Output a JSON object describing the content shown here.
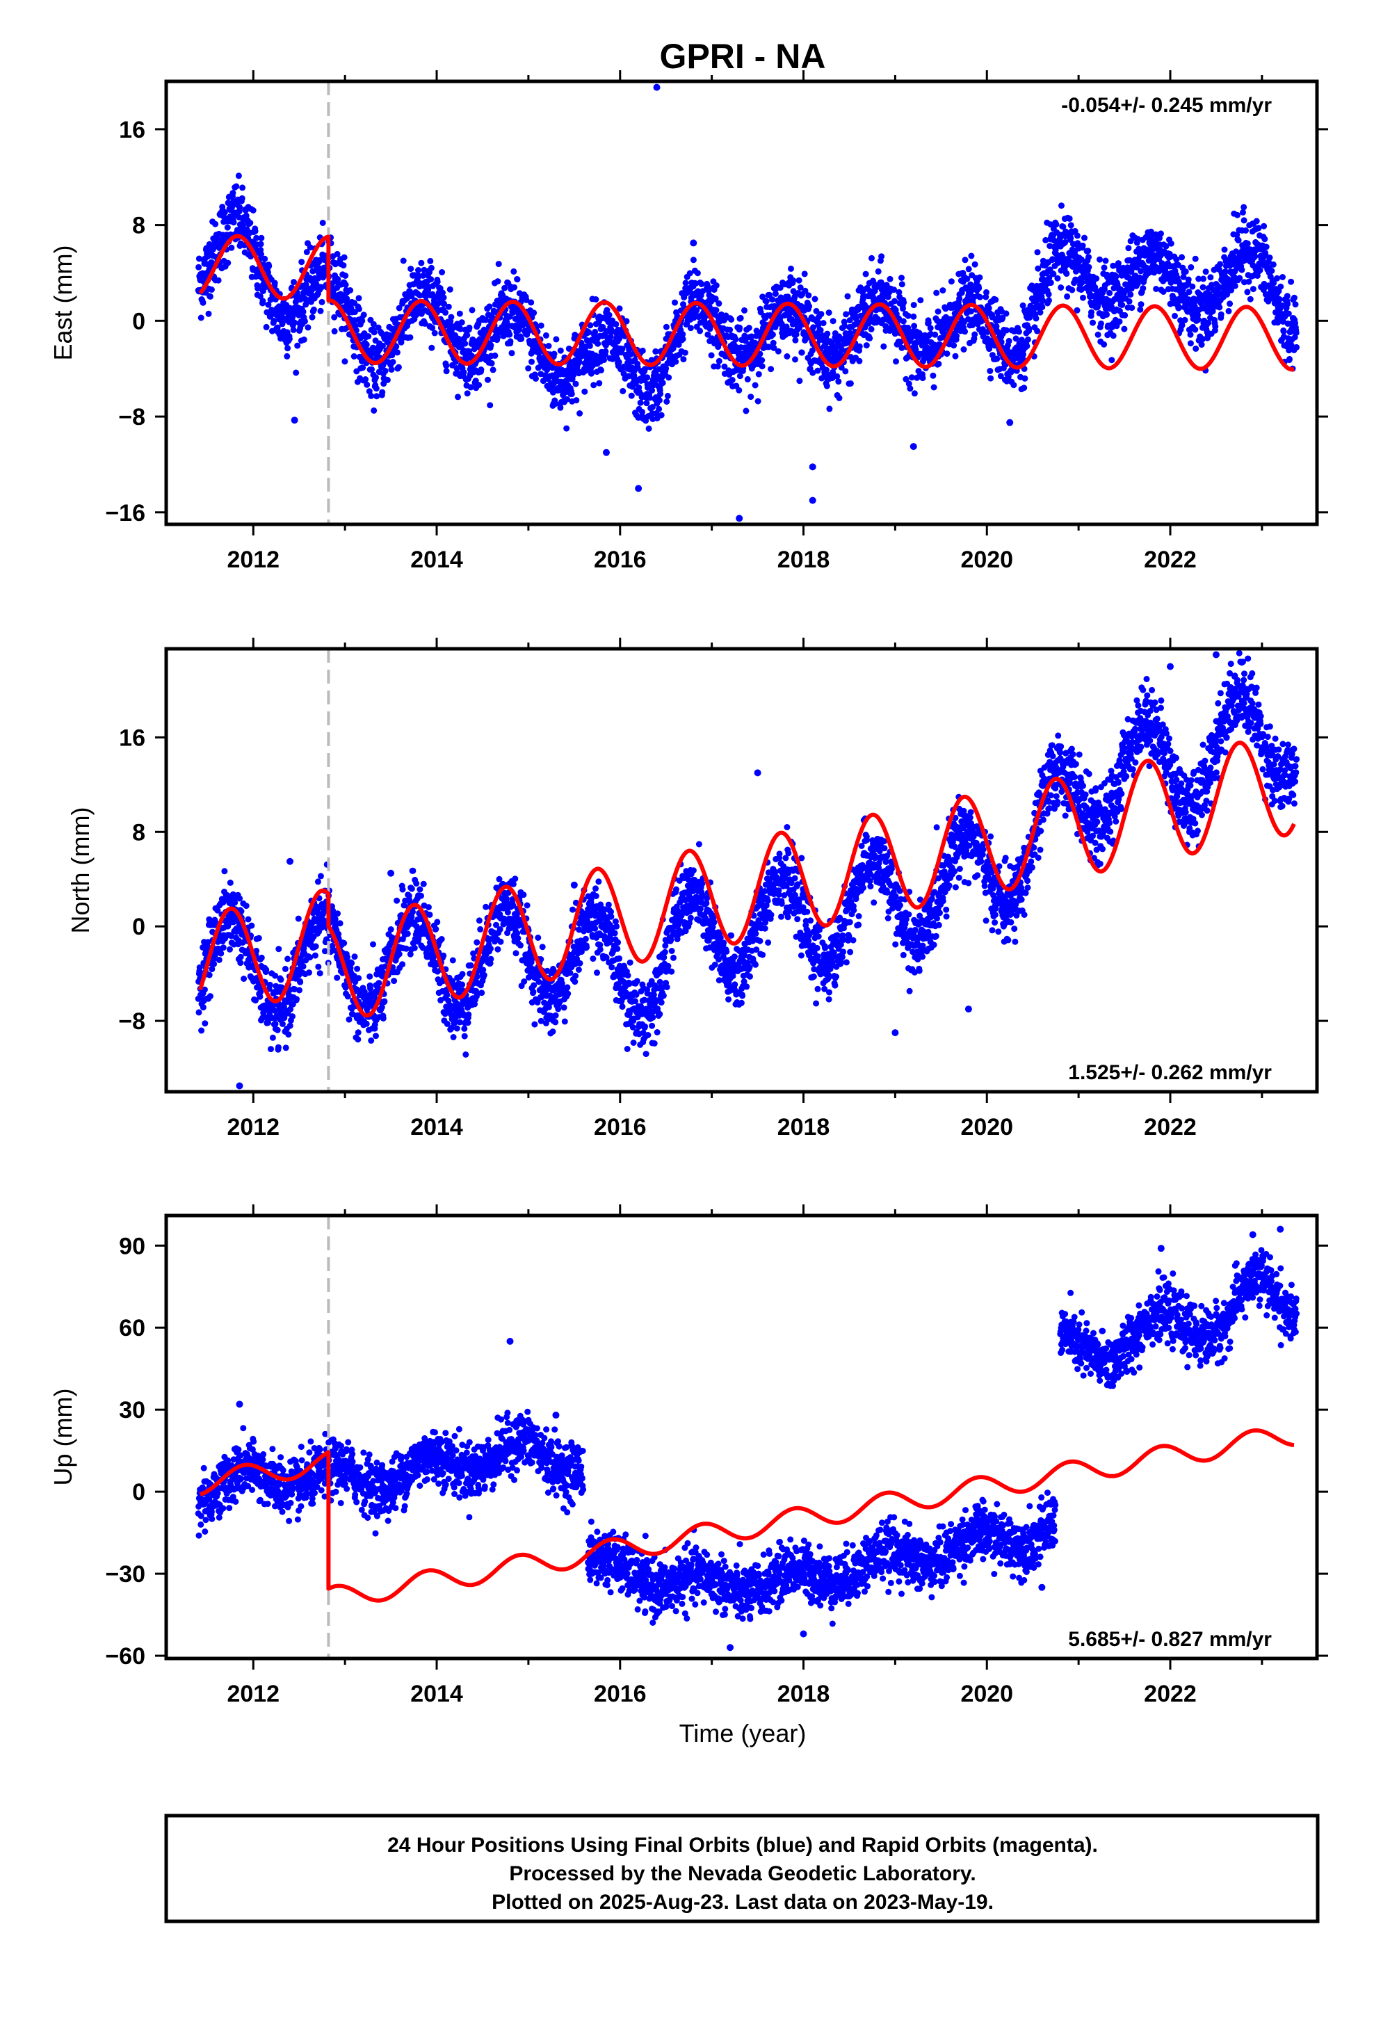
{
  "title": "GPRI - NA",
  "colors": {
    "data": "#0000ff",
    "model": "#ff0000",
    "event_line": "#bbbbbb",
    "frame": "#000000"
  },
  "xlabel": "Time (year)",
  "footer": {
    "line1": "24 Hour Positions Using Final Orbits (blue) and Rapid Orbits (magenta).",
    "line2": "Processed by the Nevada Geodetic Laboratory.",
    "line3": "Plotted on 2025-Aug-23. Last data on 2023-May-19."
  },
  "chart_data": [
    {
      "type": "scatter",
      "component": "East",
      "ylabel": "East (mm)",
      "rate_text": "-0.054+/- 0.245 mm/yr",
      "rate_position": "top-right",
      "xlim": [
        2011.05,
        2023.6
      ],
      "ylim": [
        -17,
        20
      ],
      "xticks": [
        2012,
        2014,
        2016,
        2018,
        2020,
        2022
      ],
      "yticks": [
        -16,
        -8,
        0,
        8,
        16
      ],
      "ytick_labels": [
        "−16",
        "−8",
        "0",
        "8",
        "16"
      ],
      "event_line_x": 2012.82,
      "data_series": {
        "name": "Final Orbits",
        "x_range": [
          2011.4,
          2023.38
        ],
        "trend_knots": [
          [
            2011.4,
            5.0
          ],
          [
            2011.8,
            6.5
          ],
          [
            2012.3,
            2.5
          ],
          [
            2012.8,
            2.0
          ],
          [
            2013.3,
            -1.5
          ],
          [
            2014.0,
            0.2
          ],
          [
            2014.8,
            -1.5
          ],
          [
            2015.5,
            -3.0
          ],
          [
            2016.3,
            -4.0
          ],
          [
            2016.8,
            -0.5
          ],
          [
            2017.5,
            -1.0
          ],
          [
            2018.5,
            -0.8
          ],
          [
            2019.5,
            -0.5
          ],
          [
            2020.3,
            -1.0
          ],
          [
            2020.7,
            3.5
          ],
          [
            2021.0,
            3.5
          ],
          [
            2021.5,
            4.0
          ],
          [
            2022.0,
            3.0
          ],
          [
            2022.5,
            3.0
          ],
          [
            2023.0,
            4.0
          ],
          [
            2023.38,
            1.0
          ]
        ],
        "seasonal_amplitude": 2.2,
        "scatter": 1.5,
        "outliers": [
          [
            2016.4,
            19.5
          ],
          [
            2016.8,
            6.5
          ],
          [
            2012.45,
            -8.3
          ],
          [
            2016.2,
            -14.0
          ],
          [
            2017.3,
            -16.5
          ],
          [
            2018.1,
            -12.2
          ],
          [
            2018.1,
            -15.0
          ],
          [
            2019.2,
            -10.5
          ],
          [
            2020.25,
            -8.5
          ],
          [
            2015.85,
            -11.0
          ]
        ]
      },
      "model_series": {
        "name": "Model",
        "segments": [
          {
            "x": [
              2011.42,
              2012.82
            ],
            "offset": 4.5,
            "rate": -0.054,
            "annual_amp": 2.6,
            "annual_phase": 2011.83
          },
          {
            "x": [
              2012.82,
              2023.35
            ],
            "offset": -0.9,
            "rate": -0.054,
            "annual_amp": 2.6,
            "annual_phase": 2011.83
          }
        ]
      }
    },
    {
      "type": "scatter",
      "component": "North",
      "ylabel": "North (mm)",
      "rate_text": "1.525+/- 0.262 mm/yr",
      "rate_position": "bottom-right",
      "xlim": [
        2011.05,
        2023.6
      ],
      "ylim": [
        -14,
        23.5
      ],
      "xticks": [
        2012,
        2014,
        2016,
        2018,
        2020,
        2022
      ],
      "yticks": [
        -8,
        0,
        8,
        16
      ],
      "ytick_labels": [
        "−8",
        "0",
        "8",
        "16"
      ],
      "event_line_x": 2012.82,
      "data_series": {
        "name": "Final Orbits",
        "x_range": [
          2011.4,
          2023.38
        ],
        "trend_knots": [
          [
            2011.4,
            -3.0
          ],
          [
            2012.8,
            -3.5
          ],
          [
            2013.5,
            -3.0
          ],
          [
            2014.5,
            -2.5
          ],
          [
            2015.5,
            -2.0
          ],
          [
            2016.0,
            -4.5
          ],
          [
            2017.0,
            -0.5
          ],
          [
            2018.0,
            0.5
          ],
          [
            2019.0,
            2.0
          ],
          [
            2020.0,
            4.5
          ],
          [
            2020.5,
            7.0
          ],
          [
            2021.0,
            11.0
          ],
          [
            2021.5,
            14.0
          ],
          [
            2022.0,
            13.0
          ],
          [
            2022.5,
            15.5
          ],
          [
            2023.0,
            16.0
          ],
          [
            2023.38,
            16.5
          ]
        ],
        "seasonal_amplitude": 4.0,
        "scatter": 1.5,
        "outliers": [
          [
            2011.85,
            -13.5
          ],
          [
            2012.4,
            5.5
          ],
          [
            2013.5,
            4.5
          ],
          [
            2017.5,
            13.0
          ],
          [
            2019.0,
            -9.0
          ],
          [
            2019.8,
            -7.0
          ],
          [
            2022.0,
            22.0
          ],
          [
            2022.5,
            23.0
          ],
          [
            2015.5,
            3.5
          ]
        ]
      },
      "model_series": {
        "name": "Model",
        "segments": [
          {
            "x": [
              2011.42,
              2012.82
            ],
            "offset": -3.3,
            "rate": 1.525,
            "annual_amp": 4.3,
            "annual_phase": 2011.75
          },
          {
            "x": [
              2012.82,
              2023.35
            ],
            "offset": -3.9,
            "rate": 1.525,
            "annual_amp": 4.3,
            "annual_phase": 2011.75
          }
        ]
      }
    },
    {
      "type": "scatter",
      "component": "Up",
      "ylabel": "Up (mm)",
      "rate_text": "5.685+/- 0.827 mm/yr",
      "rate_position": "bottom-right",
      "xlim": [
        2011.05,
        2023.6
      ],
      "ylim": [
        -61,
        101
      ],
      "xticks": [
        2012,
        2014,
        2016,
        2018,
        2020,
        2022
      ],
      "yticks": [
        -60,
        -30,
        0,
        30,
        60,
        90
      ],
      "ytick_labels": [
        "−60",
        "−30",
        "0",
        "30",
        "60",
        "90"
      ],
      "event_line_x": 2012.82,
      "data_series": {
        "name": "Final Orbits",
        "segments": [
          {
            "x": [
              2011.4,
              2015.6
            ],
            "knots": [
              [
                2011.4,
                0
              ],
              [
                2012.0,
                5
              ],
              [
                2012.5,
                5
              ],
              [
                2013.0,
                5
              ],
              [
                2013.5,
                5
              ],
              [
                2014.0,
                10
              ],
              [
                2014.5,
                12
              ],
              [
                2015.0,
                15
              ],
              [
                2015.6,
                10
              ]
            ]
          },
          {
            "x": [
              2015.65,
              2020.75
            ],
            "knots": [
              [
                2015.65,
                -25
              ],
              [
                2016.0,
                -30
              ],
              [
                2016.5,
                -32
              ],
              [
                2017.0,
                -35
              ],
              [
                2017.5,
                -33
              ],
              [
                2018.0,
                -32
              ],
              [
                2018.5,
                -28
              ],
              [
                2019.0,
                -25
              ],
              [
                2019.5,
                -22
              ],
              [
                2020.0,
                -18
              ],
              [
                2020.5,
                -15
              ],
              [
                2020.75,
                -12
              ]
            ]
          },
          {
            "x": [
              2020.8,
              2023.38
            ],
            "knots": [
              [
                2020.8,
                55
              ],
              [
                2021.0,
                50
              ],
              [
                2021.3,
                50
              ],
              [
                2021.8,
                62
              ],
              [
                2022.3,
                60
              ],
              [
                2022.6,
                62
              ],
              [
                2022.8,
                72
              ],
              [
                2023.0,
                75
              ],
              [
                2023.38,
                66
              ]
            ]
          }
        ],
        "seasonal_amplitude": 4,
        "scatter": 5,
        "outliers": [
          [
            2011.85,
            32
          ],
          [
            2014.8,
            55
          ],
          [
            2015.3,
            28
          ],
          [
            2017.2,
            -57
          ],
          [
            2018.0,
            -52
          ],
          [
            2020.6,
            -35
          ],
          [
            2022.9,
            94
          ],
          [
            2023.2,
            96
          ],
          [
            2021.9,
            89
          ]
        ]
      },
      "model_series": {
        "name": "Model",
        "segments": [
          {
            "x": [
              2011.42,
              2012.82
            ],
            "offset": 3.0,
            "rate": 5.685,
            "annual_amp": 4.0,
            "annual_phase": 2011.9
          },
          {
            "x": [
              2012.82,
              2023.35
            ],
            "offset": -39.0,
            "rate": 5.685,
            "annual_amp": 4.0,
            "annual_phase": 2011.9
          }
        ]
      }
    }
  ]
}
